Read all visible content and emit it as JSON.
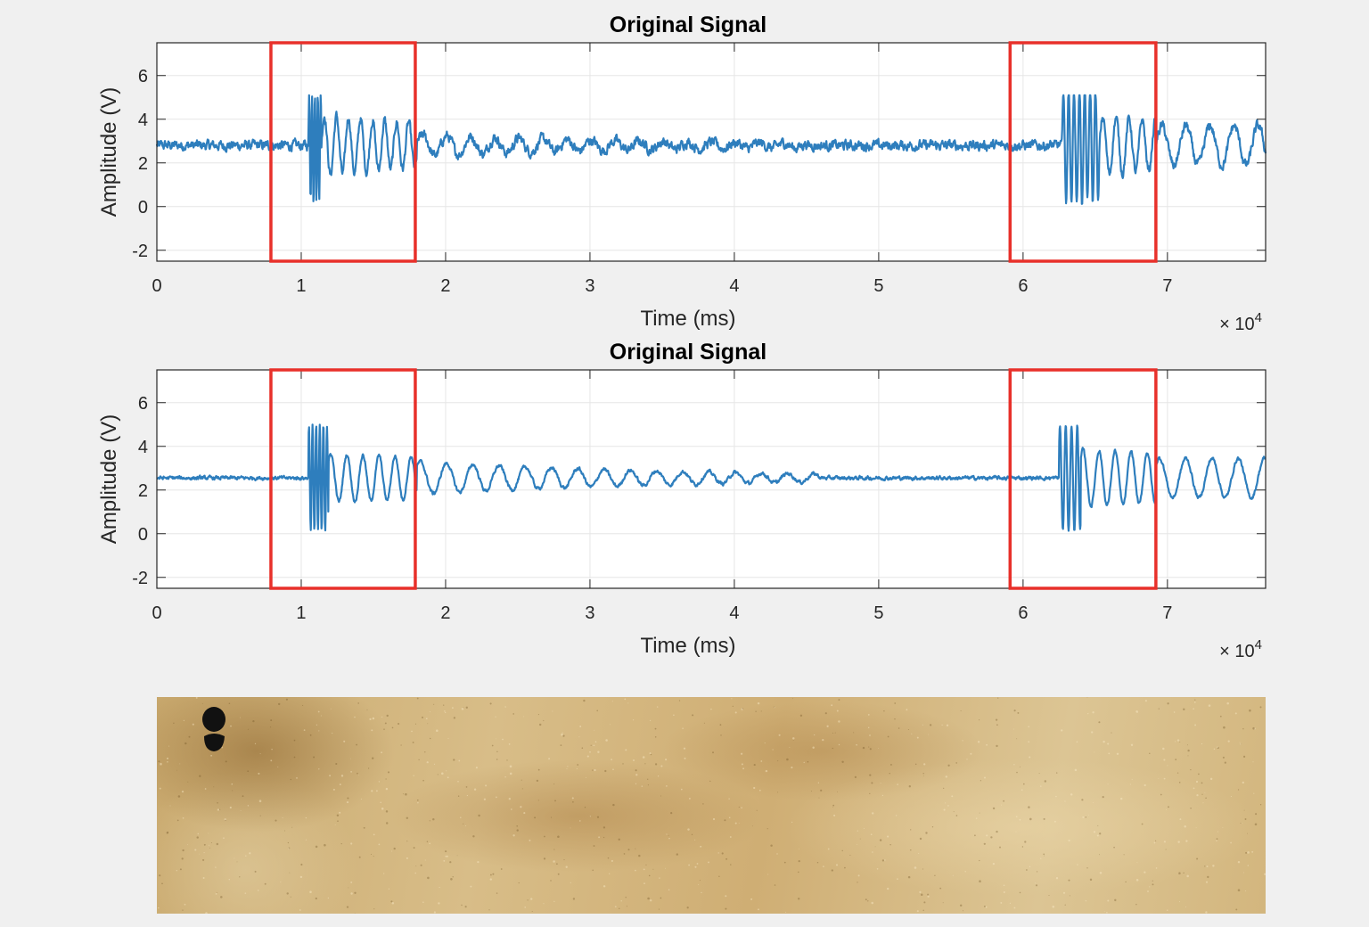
{
  "colors": {
    "signal": "#2e7ebd",
    "highlight": "#e8302a",
    "axes_bg": "#ffffff",
    "figure_bg": "#f0f0f0",
    "grid": "#e6e6e6"
  },
  "chart_data": [
    {
      "type": "line",
      "title": "Original Signal",
      "xlabel": "Time (ms)",
      "ylabel": "Amplitude (V)",
      "x_exponent_label": "× 10",
      "x_exponent_power": "4",
      "xlim": [
        0,
        76800
      ],
      "ylim": [
        -2.5,
        7.5
      ],
      "xticks": [
        0,
        10000,
        20000,
        30000,
        40000,
        50000,
        60000,
        70000
      ],
      "xtick_labels": [
        "0",
        "1",
        "2",
        "3",
        "4",
        "5",
        "6",
        "7"
      ],
      "yticks": [
        -2,
        0,
        2,
        4,
        6
      ],
      "ytick_labels": [
        "-2",
        "0",
        "2",
        "4",
        "6"
      ],
      "grid": true,
      "highlight_ranges": [
        [
          7900,
          17900
        ],
        [
          59100,
          69200
        ]
      ],
      "series": [
        {
          "baseline": 2.8,
          "noise": 0.22,
          "events": [
            {
              "start": 10500,
              "end": 11400,
              "freq_per_ms": 0.005,
              "amplitude": 2.4
            },
            {
              "start": 11400,
              "end": 18000,
              "freq_per_ms": 0.0012,
              "amplitude": 1.4,
              "decay": 5e-05
            },
            {
              "start": 18000,
              "end": 45000,
              "freq_per_ms": 0.0006,
              "amplitude": 0.5,
              "decay": 6e-05
            },
            {
              "start": 62700,
              "end": 65300,
              "freq_per_ms": 0.0027,
              "amplitude": 2.6
            },
            {
              "start": 65300,
              "end": 69200,
              "freq_per_ms": 0.0011,
              "amplitude": 1.3,
              "decay": 3e-05
            },
            {
              "start": 69200,
              "end": 76800,
              "freq_per_ms": 0.0006,
              "amplitude": 0.9
            }
          ]
        }
      ]
    },
    {
      "type": "line",
      "title": "Original Signal",
      "xlabel": "Time (ms)",
      "ylabel": "Amplitude (V)",
      "x_exponent_label": "× 10",
      "x_exponent_power": "4",
      "xlim": [
        0,
        76800
      ],
      "ylim": [
        -2.5,
        7.5
      ],
      "xticks": [
        0,
        10000,
        20000,
        30000,
        40000,
        50000,
        60000,
        70000
      ],
      "xtick_labels": [
        "0",
        "1",
        "2",
        "3",
        "4",
        "5",
        "6",
        "7"
      ],
      "yticks": [
        -2,
        0,
        2,
        4,
        6
      ],
      "ytick_labels": [
        "-2",
        "0",
        "2",
        "4",
        "6"
      ],
      "grid": true,
      "highlight_ranges": [
        [
          7900,
          17900
        ],
        [
          59100,
          69200
        ]
      ],
      "series": [
        {
          "baseline": 2.55,
          "noise": 0.08,
          "events": [
            {
              "start": 10500,
              "end": 11900,
              "freq_per_ms": 0.004,
              "amplitude": 2.4
            },
            {
              "start": 11900,
              "end": 18000,
              "freq_per_ms": 0.0009,
              "amplitude": 1.1,
              "decay": 2e-05
            },
            {
              "start": 18000,
              "end": 46000,
              "freq_per_ms": 0.00055,
              "amplitude": 0.75,
              "decay": 5e-05
            },
            {
              "start": 62500,
              "end": 64000,
              "freq_per_ms": 0.0025,
              "amplitude": 2.4
            },
            {
              "start": 64000,
              "end": 69200,
              "freq_per_ms": 0.0009,
              "amplitude": 1.3,
              "decay": 2e-05
            },
            {
              "start": 69200,
              "end": 76800,
              "freq_per_ms": 0.00055,
              "amplitude": 0.9
            }
          ]
        }
      ]
    }
  ],
  "floor_panel": {
    "footprint_icon": "footprint-icon"
  }
}
